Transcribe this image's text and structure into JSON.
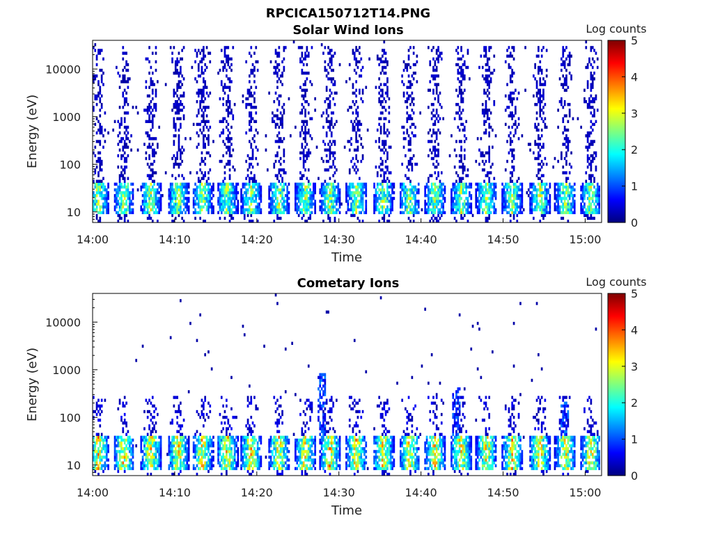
{
  "figure": {
    "title": "RPCICA150712T14.PNG"
  },
  "colors": {
    "colormap": [
      "#00007f",
      "#0000ff",
      "#007fff",
      "#00ffff",
      "#7fff7f",
      "#ffff00",
      "#ff7f00",
      "#ff0000",
      "#7f0000"
    ],
    "axis": "#000000"
  },
  "chart_data": [
    {
      "type": "heatmap",
      "title": "Solar Wind Ions",
      "xlabel": "Time",
      "ylabel": "Energy (eV)",
      "x_unit": "minutes after 14:00",
      "xlim": [
        0,
        62
      ],
      "ylim": [
        6,
        40000
      ],
      "y_scale": "log",
      "x_ticks": [
        {
          "value": 0,
          "label": "14:00"
        },
        {
          "value": 10,
          "label": "14:10"
        },
        {
          "value": 20,
          "label": "14:20"
        },
        {
          "value": 30,
          "label": "14:30"
        },
        {
          "value": 40,
          "label": "14:40"
        },
        {
          "value": 50,
          "label": "14:50"
        },
        {
          "value": 60,
          "label": "15:00"
        }
      ],
      "y_ticks": [
        {
          "value": 10,
          "label": "10"
        },
        {
          "value": 100,
          "label": "100"
        },
        {
          "value": 1000,
          "label": "1000"
        },
        {
          "value": 10000,
          "label": "10000"
        }
      ],
      "colorbar": {
        "label": "Log counts",
        "range": [
          0,
          5
        ],
        "ticks": [
          {
            "value": 0,
            "label": "0"
          },
          {
            "value": 1,
            "label": "1"
          },
          {
            "value": 2,
            "label": "2"
          },
          {
            "value": 3,
            "label": "3"
          },
          {
            "value": 4,
            "label": "4"
          },
          {
            "value": 5,
            "label": "5"
          }
        ]
      },
      "sweep_centers_min": [
        0.6,
        3.7,
        7.0,
        10.3,
        13.3,
        16.3,
        19.2,
        22.6,
        25.8,
        28.8,
        32.0,
        35.3,
        38.5,
        41.6,
        44.8,
        47.9,
        51.0,
        54.4,
        57.5,
        60.6
      ],
      "core_energy_ev": [
        12,
        40
      ],
      "core_peak_log_counts": 3.0,
      "sparse_max_energy_ev": 30000,
      "sparse_log_counts": 0.3
    },
    {
      "type": "heatmap",
      "title": "Cometary Ions",
      "xlabel": "Time",
      "ylabel": "Energy (eV)",
      "x_unit": "minutes after 14:00",
      "xlim": [
        0,
        62
      ],
      "ylim": [
        6,
        40000
      ],
      "y_scale": "log",
      "x_ticks": [
        {
          "value": 0,
          "label": "14:00"
        },
        {
          "value": 10,
          "label": "14:10"
        },
        {
          "value": 20,
          "label": "14:20"
        },
        {
          "value": 30,
          "label": "14:30"
        },
        {
          "value": 40,
          "label": "14:40"
        },
        {
          "value": 50,
          "label": "14:50"
        },
        {
          "value": 60,
          "label": "15:00"
        }
      ],
      "y_ticks": [
        {
          "value": 10,
          "label": "10"
        },
        {
          "value": 100,
          "label": "100"
        },
        {
          "value": 1000,
          "label": "1000"
        },
        {
          "value": 10000,
          "label": "10000"
        }
      ],
      "colorbar": {
        "label": "Log counts",
        "range": [
          0,
          5
        ],
        "ticks": [
          {
            "value": 0,
            "label": "0"
          },
          {
            "value": 1,
            "label": "1"
          },
          {
            "value": 2,
            "label": "2"
          },
          {
            "value": 3,
            "label": "3"
          },
          {
            "value": 4,
            "label": "4"
          },
          {
            "value": 5,
            "label": "5"
          }
        ]
      },
      "sweep_centers_min": [
        0.6,
        3.7,
        7.0,
        10.3,
        13.3,
        16.3,
        19.2,
        22.6,
        25.8,
        28.8,
        32.0,
        35.3,
        38.5,
        41.6,
        44.8,
        47.9,
        51.0,
        54.4,
        57.5,
        60.6
      ],
      "core_energy_ev": [
        10,
        40
      ],
      "core_peak_log_counts": 3.6,
      "sparse_max_energy_ev": 300,
      "sparse_log_counts": 0.4,
      "bursts": [
        {
          "t_min": 44.3,
          "max_energy_ev": 450
        },
        {
          "t_min": 27.7,
          "max_energy_ev": 900
        },
        {
          "t_min": 57.5,
          "max_energy_ev": 220
        }
      ]
    }
  ]
}
